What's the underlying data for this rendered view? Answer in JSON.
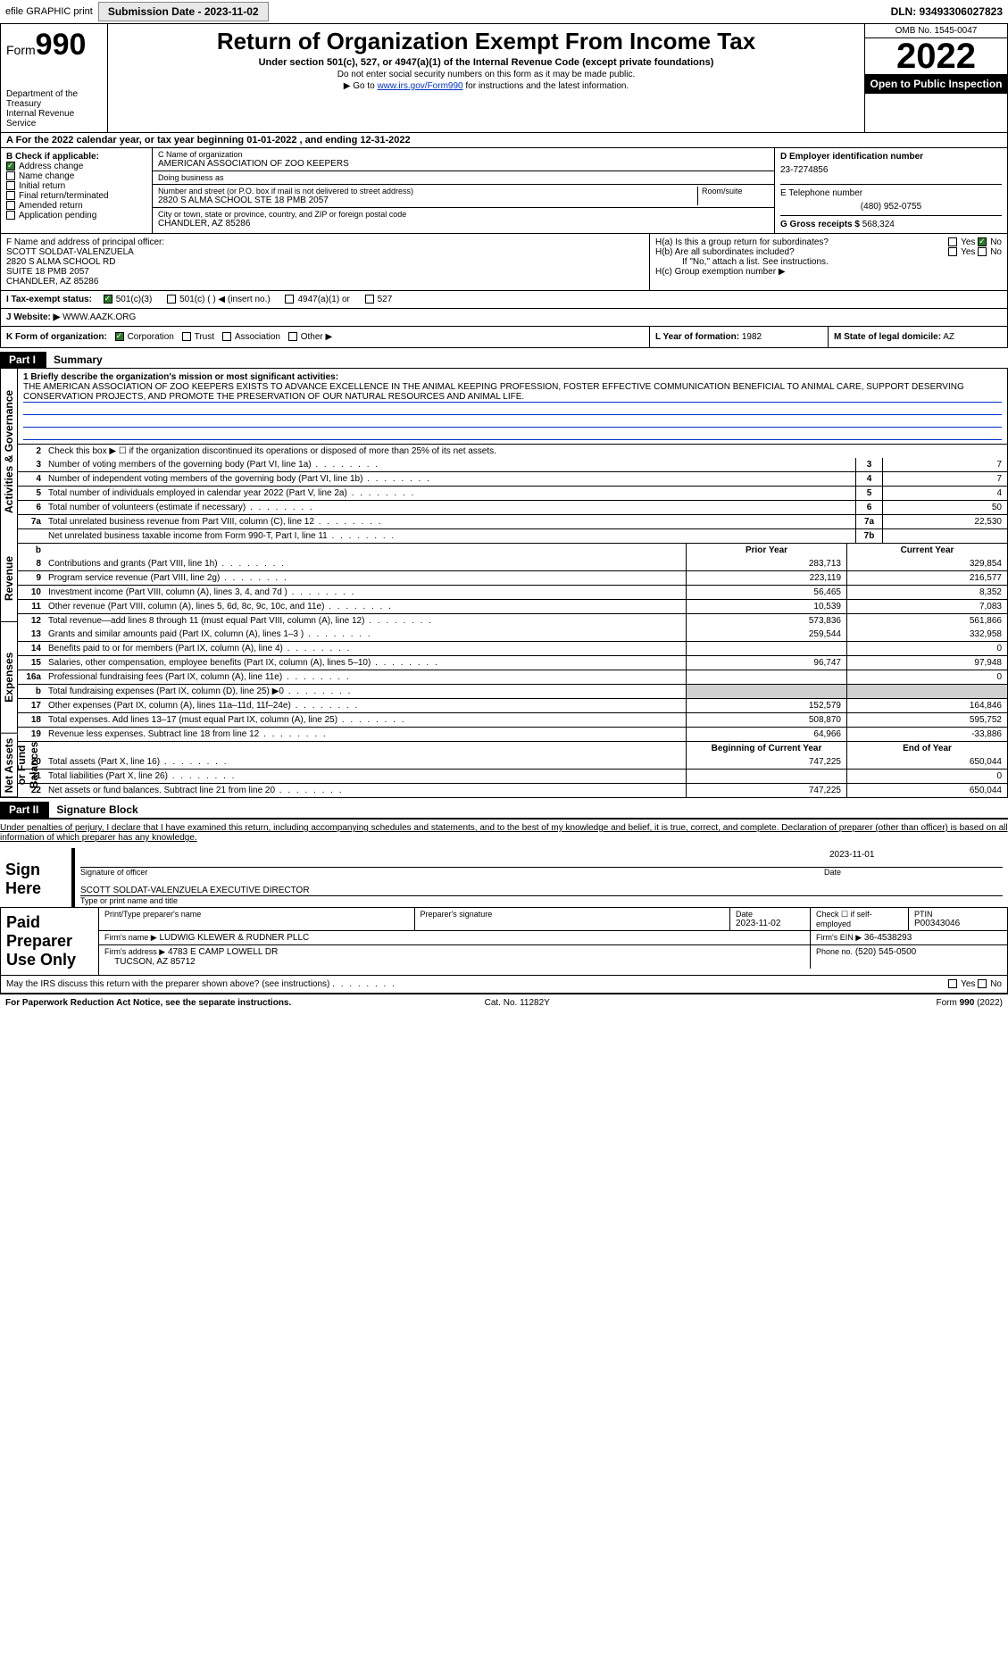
{
  "top": {
    "efile": "efile GRAPHIC print",
    "submission": "Submission Date - 2023-11-02",
    "dln": "DLN: 93493306027823"
  },
  "header": {
    "form": "Form",
    "form_num": "990",
    "title": "Return of Organization Exempt From Income Tax",
    "sub": "Under section 501(c), 527, or 4947(a)(1) of the Internal Revenue Code (except private foundations)",
    "note1": "Do not enter social security numbers on this form as it may be made public.",
    "note2_pre": "Go to ",
    "note2_link": "www.irs.gov/Form990",
    "note2_post": " for instructions and the latest information.",
    "dept": "Department of the Treasury\nInternal Revenue Service",
    "omb": "OMB No. 1545-0047",
    "year": "2022",
    "otp": "Open to Public Inspection"
  },
  "a": "For the 2022 calendar year, or tax year beginning 01-01-2022    , and ending 12-31-2022",
  "b": {
    "label": "B Check if applicable:",
    "opts": [
      "Address change",
      "Name change",
      "Initial return",
      "Final return/terminated",
      "Amended return",
      "Application pending"
    ],
    "checked": [
      true,
      false,
      false,
      false,
      false,
      false
    ]
  },
  "c": {
    "name_lbl": "C Name of organization",
    "name": "AMERICAN ASSOCIATION OF ZOO KEEPERS",
    "dba_lbl": "Doing business as",
    "dba": "",
    "street_lbl": "Number and street (or P.O. box if mail is not delivered to street address)",
    "street": "2820 S ALMA SCHOOL STE 18 PMB 2057",
    "room_lbl": "Room/suite",
    "city_lbl": "City or town, state or province, country, and ZIP or foreign postal code",
    "city": "CHANDLER, AZ  85286"
  },
  "d": {
    "lbl": "D Employer identification number",
    "val": "23-7274856"
  },
  "e": {
    "lbl": "E Telephone number",
    "val": "(480) 952-0755"
  },
  "g": {
    "lbl": "G Gross receipts $",
    "val": "568,324"
  },
  "f": {
    "lbl": "F  Name and address of principal officer:",
    "name": "SCOTT SOLDAT-VALENZUELA",
    "l1": "2820 S ALMA SCHOOL RD",
    "l2": "SUITE 18 PMB 2057",
    "l3": "CHANDLER, AZ  85286"
  },
  "h": {
    "a": "H(a)  Is this a group return for subordinates?",
    "b": "H(b)  Are all subordinates included?",
    "b_note": "If \"No,\" attach a list. See instructions.",
    "c": "H(c)  Group exemption number ▶"
  },
  "i": {
    "lbl": "I    Tax-exempt status:",
    "opts": [
      "501(c)(3)",
      "501(c) (  ) ◀ (insert no.)",
      "4947(a)(1) or",
      "527"
    ]
  },
  "j": {
    "lbl": "J   Website: ▶",
    "val": "WWW.AAZK.ORG"
  },
  "k": {
    "lbl": "K Form of organization:",
    "opts": [
      "Corporation",
      "Trust",
      "Association",
      "Other ▶"
    ]
  },
  "l": {
    "lbl": "L Year of formation:",
    "val": "1982"
  },
  "m": {
    "lbl": "M State of legal domicile:",
    "val": "AZ"
  },
  "part1": {
    "tag": "Part I",
    "title": "Summary",
    "tabs": [
      "Activities & Governance",
      "Revenue",
      "Expenses",
      "Net Assets or Fund Balances"
    ],
    "line1_lbl": "1  Briefly describe the organization's mission or most significant activities:",
    "mission": "THE AMERICAN ASSOCIATION OF ZOO KEEPERS EXISTS TO ADVANCE EXCELLENCE IN THE ANIMAL KEEPING PROFESSION, FOSTER EFFECTIVE COMMUNICATION BENEFICIAL TO ANIMAL CARE, SUPPORT DESERVING CONSERVATION PROJECTS, AND PROMOTE THE PRESERVATION OF OUR NATURAL RESOURCES AND ANIMAL LIFE.",
    "line2": "Check this box ▶ ☐  if the organization discontinued its operations or disposed of more than 25% of its net assets.",
    "gov_lines": [
      {
        "n": "3",
        "t": "Number of voting members of the governing body (Part VI, line 1a)",
        "box": "3",
        "v": "7"
      },
      {
        "n": "4",
        "t": "Number of independent voting members of the governing body (Part VI, line 1b)",
        "box": "4",
        "v": "7"
      },
      {
        "n": "5",
        "t": "Total number of individuals employed in calendar year 2022 (Part V, line 2a)",
        "box": "5",
        "v": "4"
      },
      {
        "n": "6",
        "t": "Total number of volunteers (estimate if necessary)",
        "box": "6",
        "v": "50"
      },
      {
        "n": "7a",
        "t": "Total unrelated business revenue from Part VIII, column (C), line 12",
        "box": "7a",
        "v": "22,530"
      },
      {
        "n": "",
        "t": "Net unrelated business taxable income from Form 990-T, Part I, line 11",
        "box": "7b",
        "v": ""
      }
    ],
    "py_hdr": "Prior Year",
    "cy_hdr": "Current Year",
    "rev_lines": [
      {
        "n": "8",
        "t": "Contributions and grants (Part VIII, line 1h)",
        "p": "283,713",
        "c": "329,854"
      },
      {
        "n": "9",
        "t": "Program service revenue (Part VIII, line 2g)",
        "p": "223,119",
        "c": "216,577"
      },
      {
        "n": "10",
        "t": "Investment income (Part VIII, column (A), lines 3, 4, and 7d )",
        "p": "56,465",
        "c": "8,352"
      },
      {
        "n": "11",
        "t": "Other revenue (Part VIII, column (A), lines 5, 6d, 8c, 9c, 10c, and 11e)",
        "p": "10,539",
        "c": "7,083"
      },
      {
        "n": "12",
        "t": "Total revenue—add lines 8 through 11 (must equal Part VIII, column (A), line 12)",
        "p": "573,836",
        "c": "561,866"
      }
    ],
    "exp_lines": [
      {
        "n": "13",
        "t": "Grants and similar amounts paid (Part IX, column (A), lines 1–3 )",
        "p": "259,544",
        "c": "332,958"
      },
      {
        "n": "14",
        "t": "Benefits paid to or for members (Part IX, column (A), line 4)",
        "p": "",
        "c": "0"
      },
      {
        "n": "15",
        "t": "Salaries, other compensation, employee benefits (Part IX, column (A), lines 5–10)",
        "p": "96,747",
        "c": "97,948"
      },
      {
        "n": "16a",
        "t": "Professional fundraising fees (Part IX, column (A), line 11e)",
        "p": "",
        "c": "0"
      },
      {
        "n": "b",
        "t": "Total fundraising expenses (Part IX, column (D), line 25) ▶0",
        "p": "",
        "c": "",
        "shade": true
      },
      {
        "n": "17",
        "t": "Other expenses (Part IX, column (A), lines 11a–11d, 11f–24e)",
        "p": "152,579",
        "c": "164,846"
      },
      {
        "n": "18",
        "t": "Total expenses. Add lines 13–17 (must equal Part IX, column (A), line 25)",
        "p": "508,870",
        "c": "595,752"
      },
      {
        "n": "19",
        "t": "Revenue less expenses. Subtract line 18 from line 12",
        "p": "64,966",
        "c": "-33,886"
      }
    ],
    "bcy_hdr": "Beginning of Current Year",
    "eoy_hdr": "End of Year",
    "net_lines": [
      {
        "n": "20",
        "t": "Total assets (Part X, line 16)",
        "p": "747,225",
        "c": "650,044"
      },
      {
        "n": "21",
        "t": "Total liabilities (Part X, line 26)",
        "p": "",
        "c": "0"
      },
      {
        "n": "22",
        "t": "Net assets or fund balances. Subtract line 21 from line 20",
        "p": "747,225",
        "c": "650,044"
      }
    ]
  },
  "part2": {
    "tag": "Part II",
    "title": "Signature Block",
    "decl": "Under penalties of perjury, I declare that I have examined this return, including accompanying schedules and statements, and to the best of my knowledge and belief, it is true, correct, and complete. Declaration of preparer (other than officer) is based on all information of which preparer has any knowledge.",
    "sign_here": "Sign Here",
    "sig_of_officer": "Signature of officer",
    "sig_date": "2023-11-01",
    "date_lbl": "Date",
    "officer": "SCOTT SOLDAT-VALENZUELA  EXECUTIVE DIRECTOR",
    "officer_lbl": "Type or print name and title",
    "paid": "Paid Preparer Use Only",
    "pname_lbl": "Print/Type preparer's name",
    "psig_lbl": "Preparer's signature",
    "pdate_lbl": "Date",
    "pdate": "2023-11-02",
    "pcheck_lbl": "Check ☐ if self-employed",
    "ptin_lbl": "PTIN",
    "ptin": "P00343046",
    "firm_lbl": "Firm's name    ▶",
    "firm": "LUDWIG KLEWER & RUDNER PLLC",
    "fein_lbl": "Firm's EIN ▶",
    "fein": "36-4538293",
    "faddr_lbl": "Firm's address ▶",
    "faddr1": "4783 E CAMP LOWELL DR",
    "faddr2": "TUCSON, AZ  85712",
    "fphone_lbl": "Phone no.",
    "fphone": "(520) 545-0500",
    "discuss": "May the IRS discuss this return with the preparer shown above? (see instructions)"
  },
  "footer": {
    "left": "For Paperwork Reduction Act Notice, see the separate instructions.",
    "mid": "Cat. No. 11282Y",
    "right": "Form 990 (2022)"
  }
}
